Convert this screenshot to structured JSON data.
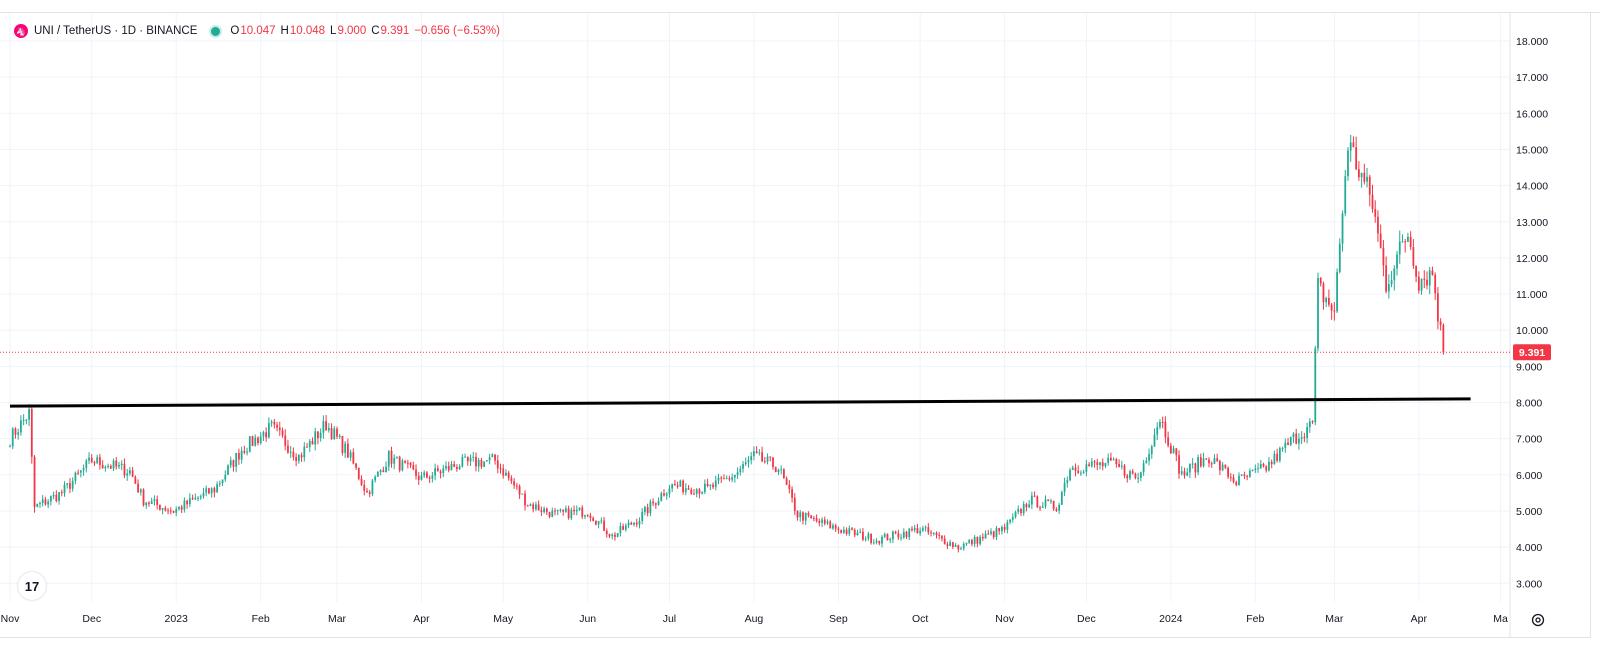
{
  "legend": {
    "symbol": "UNI / TetherUS · 1D · BINANCE",
    "o_label": "O",
    "o_value": "10.047",
    "h_label": "H",
    "h_value": "10.048",
    "l_label": "L",
    "l_value": "9.000",
    "c_label": "C",
    "c_value": "9.391",
    "change": "−0.656 (−6.53%)"
  },
  "price_badge": "9.391",
  "colors": {
    "up": "#22ab94",
    "down": "#f23645",
    "grid": "#f0f3fa",
    "trendline": "#000000"
  },
  "icons": {
    "tv_logo": "tradingview-logo-icon",
    "settings": "gear-icon"
  },
  "chart_data": {
    "type": "candlestick",
    "y_ticks": [
      "18.000",
      "17.000",
      "16.000",
      "15.000",
      "14.000",
      "13.000",
      "12.000",
      "11.000",
      "10.000",
      "9.000",
      "8.000",
      "7.000",
      "6.000",
      "5.000",
      "4.000",
      "3.000"
    ],
    "ylim": [
      2.3,
      18.5
    ],
    "x_ticks": [
      "Nov",
      "Dec",
      "2023",
      "Feb",
      "Mar",
      "Apr",
      "May",
      "Jun",
      "Jul",
      "Aug",
      "Sep",
      "Oct",
      "Nov",
      "Dec",
      "2024",
      "Feb",
      "Mar",
      "Apr",
      "Ma"
    ],
    "last_price": 9.391,
    "trendline": {
      "from": {
        "date": "2022-11-01",
        "price": 7.9
      },
      "to": {
        "date": "2024-04-20",
        "price": 8.1
      }
    },
    "price_path": [
      [
        "2022-11-01",
        7.0
      ],
      [
        "2022-11-08",
        7.7
      ],
      [
        "2022-11-10",
        5.1
      ],
      [
        "2022-11-20",
        5.5
      ],
      [
        "2022-12-01",
        6.4
      ],
      [
        "2022-12-15",
        6.1
      ],
      [
        "2022-12-20",
        5.3
      ],
      [
        "2022-12-31",
        5.0
      ],
      [
        "2023-01-15",
        5.6
      ],
      [
        "2023-01-25",
        6.7
      ],
      [
        "2023-02-05",
        7.3
      ],
      [
        "2023-02-15",
        6.5
      ],
      [
        "2023-02-25",
        7.4
      ],
      [
        "2023-03-05",
        6.6
      ],
      [
        "2023-03-12",
        5.5
      ],
      [
        "2023-03-20",
        6.5
      ],
      [
        "2023-04-01",
        5.9
      ],
      [
        "2023-04-15",
        6.3
      ],
      [
        "2023-04-28",
        6.4
      ],
      [
        "2023-05-10",
        5.2
      ],
      [
        "2023-05-20",
        4.9
      ],
      [
        "2023-06-01",
        5.0
      ],
      [
        "2023-06-10",
        4.3
      ],
      [
        "2023-06-20",
        4.8
      ],
      [
        "2023-07-01",
        5.7
      ],
      [
        "2023-07-15",
        5.6
      ],
      [
        "2023-07-25",
        6.0
      ],
      [
        "2023-08-01",
        6.5
      ],
      [
        "2023-08-10",
        6.2
      ],
      [
        "2023-08-17",
        4.9
      ],
      [
        "2023-09-01",
        4.5
      ],
      [
        "2023-09-15",
        4.2
      ],
      [
        "2023-10-01",
        4.5
      ],
      [
        "2023-10-15",
        4.0
      ],
      [
        "2023-11-01",
        4.5
      ],
      [
        "2023-11-10",
        5.3
      ],
      [
        "2023-11-20",
        5.1
      ],
      [
        "2023-11-25",
        6.2
      ],
      [
        "2023-12-10",
        6.3
      ],
      [
        "2023-12-20",
        5.9
      ],
      [
        "2023-12-28",
        7.6
      ],
      [
        "2024-01-05",
        6.0
      ],
      [
        "2024-01-15",
        6.5
      ],
      [
        "2024-01-25",
        5.8
      ],
      [
        "2024-02-05",
        6.2
      ],
      [
        "2024-02-15",
        7.0
      ],
      [
        "2024-02-22",
        7.4
      ],
      [
        "2024-02-24",
        11.2
      ],
      [
        "2024-03-01",
        10.5
      ],
      [
        "2024-03-06",
        15.2
      ],
      [
        "2024-03-15",
        13.5
      ],
      [
        "2024-03-20",
        11.3
      ],
      [
        "2024-03-28",
        12.7
      ],
      [
        "2024-04-01",
        11.4
      ],
      [
        "2024-04-06",
        11.6
      ],
      [
        "2024-04-10",
        9.39
      ]
    ]
  }
}
